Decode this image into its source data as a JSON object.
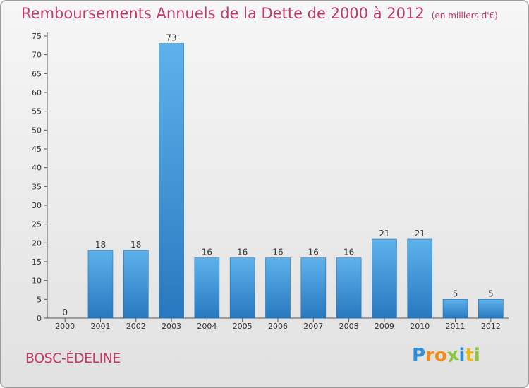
{
  "title": "Remboursements Annuels de la Dette de 2000 à 2012",
  "unit": "(en milliers d'€)",
  "commune": "BOSC-ÉDELINE",
  "logo": {
    "text": "Proxiti",
    "letters": [
      "P",
      "r",
      "o",
      "x",
      "i",
      "t",
      "i"
    ],
    "colors": [
      "#2e8fd8",
      "#f08a1c",
      "#f08a1c",
      "#8cc63f",
      "#2e8fd8",
      "#e8b81c",
      "#8cc63f"
    ]
  },
  "colors": {
    "bar": "#2f8fd6",
    "bar_light": "#5db2ec",
    "title": "#c0396b",
    "text": "#333333"
  },
  "chart_data": {
    "type": "bar",
    "categories": [
      "2000",
      "2001",
      "2002",
      "2003",
      "2004",
      "2005",
      "2006",
      "2007",
      "2008",
      "2009",
      "2010",
      "2011",
      "2012"
    ],
    "values": [
      0,
      18,
      18,
      73,
      16,
      16,
      16,
      16,
      16,
      21,
      21,
      5,
      5
    ],
    "data_labels": [
      "0",
      "18",
      "18",
      "73",
      "16",
      "16",
      "16",
      "16",
      "16",
      "21",
      "21",
      "5",
      "5"
    ],
    "title": "Remboursements Annuels de la Dette de 2000 à 2012",
    "xlabel": "",
    "ylabel": "",
    "ylim": [
      0,
      75
    ],
    "yticks": [
      0,
      5,
      10,
      15,
      20,
      25,
      30,
      35,
      40,
      45,
      50,
      55,
      60,
      65,
      70,
      75
    ],
    "grid": false
  }
}
